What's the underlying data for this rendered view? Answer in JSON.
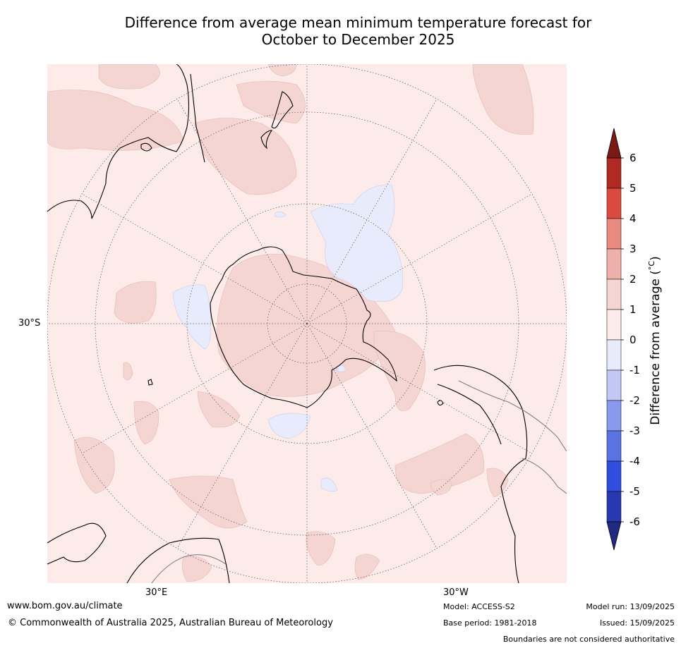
{
  "title_line1": "Difference from average mean minimum temperature forecast for",
  "title_line2": "October to December 2025",
  "map": {
    "projection": "south polar stereographic",
    "lat_label": "30°S",
    "lon_labels": [
      "30°E",
      "30°W"
    ],
    "land_outline_color": "#000000",
    "boundary_color": "#808080",
    "graticule_color": "#555555"
  },
  "colorbar": {
    "label": "Difference from average (°C)",
    "label_main": "Difference from average (",
    "label_unit": "°C",
    "label_close": ")",
    "tick_labels": [
      "6",
      "5",
      "4",
      "3",
      "2",
      "1",
      "0",
      "-1",
      "-2",
      "-3",
      "-4",
      "-5",
      "-6"
    ],
    "bins_top_to_bottom": [
      {
        "range": "5 to 6",
        "color": "#b02a24"
      },
      {
        "range": "4 to 5",
        "color": "#db4a3e"
      },
      {
        "range": "3 to 4",
        "color": "#e98a80"
      },
      {
        "range": "2 to 3",
        "color": "#efb0a9"
      },
      {
        "range": "1 to 2",
        "color": "#f5d5d2"
      },
      {
        "range": "0 to 1",
        "color": "#fcebe8"
      },
      {
        "range": "-1 to 0",
        "color": "#e8ebfb"
      },
      {
        "range": "-2 to -1",
        "color": "#c0c8f3"
      },
      {
        "range": "-3 to -2",
        "color": "#8899ee"
      },
      {
        "range": "-4 to -3",
        "color": "#5a72e2"
      },
      {
        "range": "-5 to -4",
        "color": "#2f4ee0"
      },
      {
        "range": "-6 to -5",
        "color": "#2838ae"
      }
    ],
    "extend_max_color": "#7a1a15",
    "extend_min_color": "#1f2a80"
  },
  "footer": {
    "website": "www.bom.gov.au/climate",
    "copyright": "© Commonwealth of Australia 2025, Australian Bureau of Meteorology",
    "model": "Model: ACCESS-S2",
    "base_period": "Base period: 1981-2018",
    "model_run": "Model run: 13/09/2025",
    "issued": "Issued: 15/09/2025",
    "boundaries_note": "Boundaries are not considered authoritative"
  }
}
